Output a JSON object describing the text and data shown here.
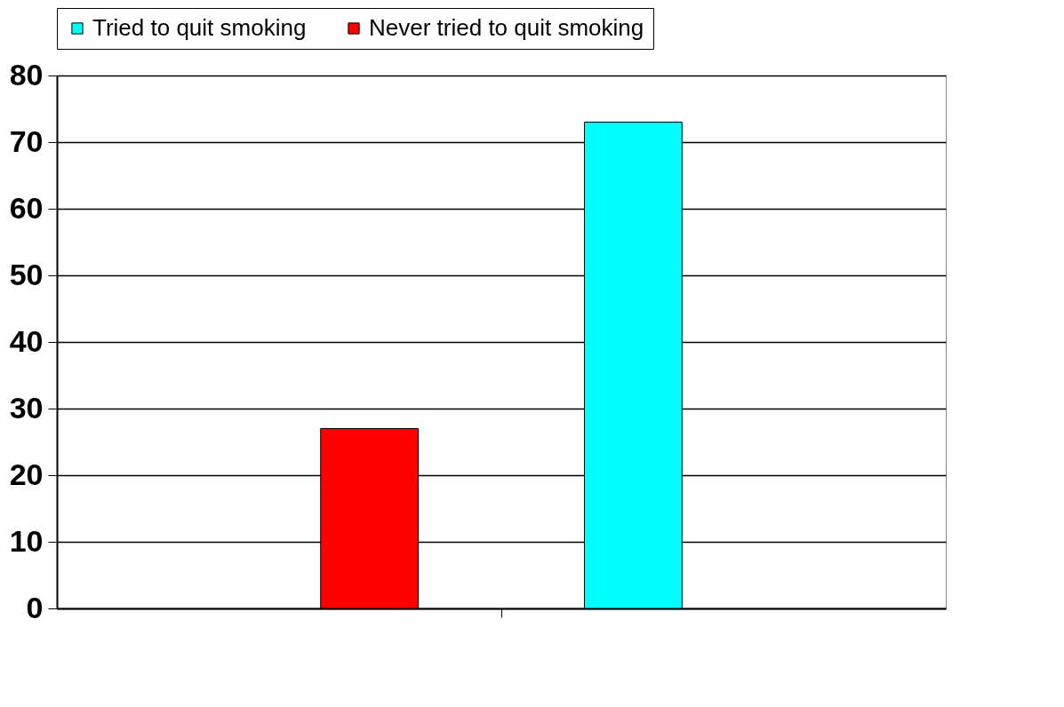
{
  "chart_data": {
    "type": "bar",
    "categories": [
      null
    ],
    "series": [
      {
        "name": "Tried to quit smoking",
        "color": "#00ffff",
        "values": [
          73
        ]
      },
      {
        "name": "Never tried to quit smoking",
        "color": "#ff0000",
        "values": [
          27
        ]
      }
    ],
    "ylim": [
      0,
      80
    ],
    "yticks": [
      0,
      10,
      20,
      30,
      40,
      50,
      60,
      70,
      80
    ],
    "grid": "y",
    "legend": "top",
    "tick_labels": "y"
  }
}
